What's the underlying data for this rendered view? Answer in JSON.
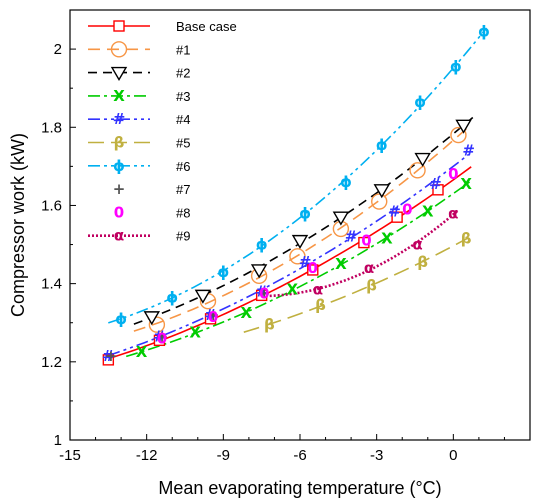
{
  "chart_data": {
    "type": "line",
    "title": "",
    "xlabel": "Mean evaporating temperature (°C)",
    "ylabel": "Compressor work (kW)",
    "xlim": [
      -15,
      3
    ],
    "ylim": [
      1,
      2.1
    ],
    "xticks": [
      -15,
      -12,
      -9,
      -6,
      -3,
      0
    ],
    "xtick_labels": [
      "-15",
      "-12",
      "-9",
      "-6",
      "-3",
      "0"
    ],
    "yticks": [
      1,
      1.2,
      1.4,
      1.6,
      1.8,
      2
    ],
    "ytick_labels": [
      "1",
      "1.2",
      "1.4",
      "1.6",
      "1.8",
      "2"
    ],
    "grid": false,
    "legend_position": "top-left",
    "series": [
      {
        "name": "Base case",
        "color": "#ff0000",
        "dash": "",
        "marker": "square",
        "marker_glyph": "",
        "x": [
          -13.5,
          -11.5,
          -9.5,
          -7.5,
          -5.5,
          -3.5,
          -2.2,
          -0.6
        ],
        "y": [
          1.205,
          1.255,
          1.31,
          1.37,
          1.435,
          1.505,
          1.57,
          1.64
        ],
        "curve": {
          "x": [
            -13.5,
            0.7
          ],
          "y": [
            1.2,
            1.695
          ]
        }
      },
      {
        "name": "#1",
        "color": "#f79646",
        "dash": "12,7",
        "marker": "circle",
        "marker_glyph": "",
        "x": [
          -11.6,
          -9.6,
          -7.6,
          -6.1,
          -4.4,
          -2.9,
          -1.4,
          0.2
        ],
        "y": [
          1.295,
          1.355,
          1.42,
          1.47,
          1.54,
          1.61,
          1.69,
          1.78
        ],
        "curve": {
          "x": [
            -12.5,
            0.6
          ],
          "y": [
            1.275,
            1.79
          ]
        }
      },
      {
        "name": "#2",
        "color": "#000000",
        "dash": "9,6",
        "marker": "triangle-down",
        "marker_glyph": "",
        "x": [
          -11.8,
          -9.8,
          -7.6,
          -6.0,
          -4.4,
          -2.8,
          -1.2,
          0.4
        ],
        "y": [
          1.315,
          1.37,
          1.435,
          1.51,
          1.57,
          1.64,
          1.72,
          1.805
        ],
        "curve": {
          "x": [
            -12.5,
            0.9
          ],
          "y": [
            1.29,
            1.83
          ]
        }
      },
      {
        "name": "#3",
        "color": "#00cc00",
        "dash": "12,4,3,4",
        "marker": "glyph",
        "marker_glyph": "X",
        "x": [
          -12.2,
          -10.1,
          -8.1,
          -6.3,
          -4.4,
          -2.6,
          -1.0,
          0.5
        ],
        "y": [
          1.225,
          1.275,
          1.325,
          1.385,
          1.45,
          1.515,
          1.585,
          1.655
        ],
        "curve": {
          "x": [
            -12.8,
            0.7
          ],
          "y": [
            1.21,
            1.665
          ]
        }
      },
      {
        "name": "#4",
        "color": "#3333ff",
        "dash": "12,4,3,4,3,4",
        "marker": "glyph",
        "marker_glyph": "#",
        "x": [
          -13.5,
          -11.5,
          -9.5,
          -7.5,
          -5.8,
          -4.0,
          -2.3,
          -0.7,
          0.6
        ],
        "y": [
          1.215,
          1.265,
          1.32,
          1.38,
          1.455,
          1.52,
          1.585,
          1.655,
          1.74
        ],
        "curve": {
          "x": [
            -13.5,
            0.6
          ],
          "y": [
            1.21,
            1.74
          ]
        }
      },
      {
        "name": "#5",
        "color": "#c0b040",
        "dash": "16,7",
        "marker": "glyph",
        "marker_glyph": "β",
        "x": [
          -7.2,
          -5.2,
          -3.2,
          -1.2,
          0.5
        ],
        "y": [
          1.295,
          1.345,
          1.395,
          1.455,
          1.515
        ],
        "curve": {
          "x": [
            -8.2,
            0.6
          ],
          "y": [
            1.27,
            1.525
          ]
        }
      },
      {
        "name": "#6",
        "color": "#00b0f0",
        "dash": "12,4,3,4,3,4",
        "marker": "glyph",
        "marker_glyph": "ϕ",
        "x": [
          -13.0,
          -11.0,
          -9.0,
          -7.5,
          -5.8,
          -4.2,
          -2.8,
          -1.3,
          0.1,
          1.2
        ],
        "y": [
          1.31,
          1.365,
          1.43,
          1.5,
          1.58,
          1.66,
          1.755,
          1.865,
          1.955,
          2.045
        ],
        "curve": {
          "x": [
            -13.5,
            1.3
          ],
          "y": [
            1.285,
            2.06
          ]
        }
      },
      {
        "name": "#7",
        "color": "#555555",
        "dash": "none",
        "marker": "glyph",
        "marker_glyph": "+",
        "x": [
          -13.4,
          -11.4,
          -9.4,
          -7.4
        ],
        "y": [
          1.215,
          1.265,
          1.32,
          1.375
        ],
        "curve": {
          "x": [],
          "y": []
        }
      },
      {
        "name": "#8",
        "color": "#ff00ff",
        "dash": "none",
        "marker": "glyph",
        "marker_glyph": "0",
        "x": [
          -11.4,
          -9.4,
          -7.4,
          -5.5,
          -3.4,
          -1.8,
          0.0
        ],
        "y": [
          1.26,
          1.315,
          1.375,
          1.44,
          1.51,
          1.59,
          1.68
        ],
        "curve": {
          "x": [],
          "y": []
        }
      },
      {
        "name": "#9",
        "color": "#c00060",
        "dash": "2,2",
        "marker": "glyph",
        "marker_glyph": "α",
        "x": [
          -5.3,
          -3.3,
          -1.4,
          0.0
        ],
        "y": [
          1.385,
          1.44,
          1.5,
          1.58
        ],
        "curve": {
          "x": [
            -7.5,
            0.2
          ],
          "y": [
            1.35,
            1.585
          ]
        }
      }
    ]
  }
}
